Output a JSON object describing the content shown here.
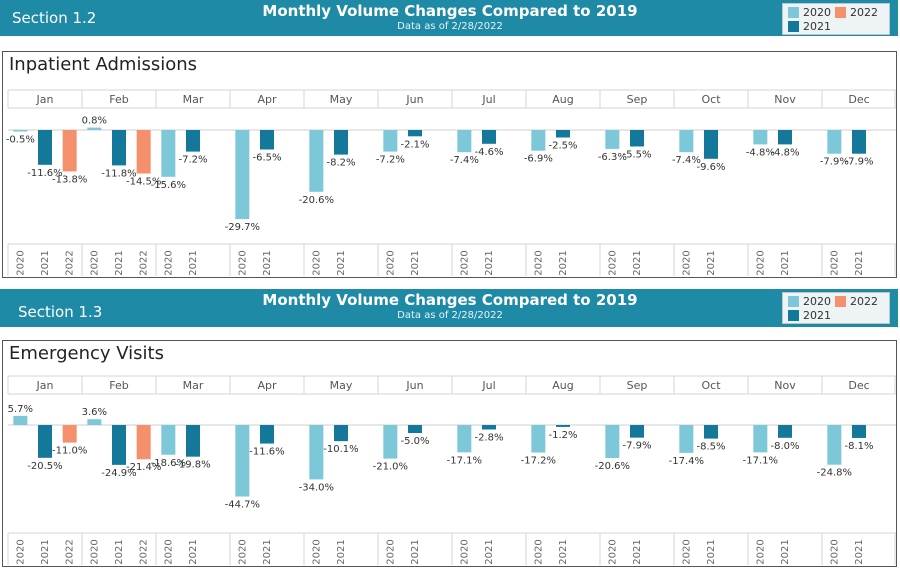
{
  "legend": {
    "entries": [
      {
        "label": "2020",
        "color": "#7cc7d8"
      },
      {
        "label": "2022",
        "color": "#f4906c"
      },
      {
        "label": "2021",
        "color": "#13789a"
      }
    ]
  },
  "sections": [
    {
      "section_label": "Section 1.2",
      "title": "Monthly Volume Changes Compared to 2019",
      "subtitle": "Data as of 2/28/2022",
      "chart_title": "Inpatient Admissions"
    },
    {
      "section_label": "Section 1.3",
      "title": "Monthly Volume Changes Compared to 2019",
      "subtitle": "Data as of 2/28/2022",
      "chart_title": "Emergency Visits"
    }
  ],
  "chart_data": [
    {
      "type": "bar",
      "title": "Inpatient Admissions",
      "value_suffix": "%",
      "months": [
        "Jan",
        "Feb",
        "Mar",
        "Apr",
        "May",
        "Jun",
        "Jul",
        "Aug",
        "Sep",
        "Oct",
        "Nov",
        "Dec"
      ],
      "series": [
        {
          "name": "2020",
          "color": "#7cc7d8",
          "values": [
            -0.5,
            0.8,
            -15.6,
            -29.7,
            -20.6,
            -7.2,
            -7.4,
            -6.9,
            -6.3,
            -7.4,
            -4.8,
            -7.9
          ]
        },
        {
          "name": "2021",
          "color": "#13789a",
          "values": [
            -11.6,
            -11.8,
            -7.2,
            -6.5,
            -8.2,
            -2.1,
            -4.6,
            -2.5,
            -5.5,
            -9.6,
            -4.8,
            -7.9
          ]
        },
        {
          "name": "2022",
          "color": "#f4906c",
          "values": [
            -13.8,
            -14.5,
            null,
            null,
            null,
            null,
            null,
            null,
            null,
            null,
            null,
            null
          ]
        }
      ]
    },
    {
      "type": "bar",
      "title": "Emergency Visits",
      "value_suffix": "%",
      "months": [
        "Jan",
        "Feb",
        "Mar",
        "Apr",
        "May",
        "Jun",
        "Jul",
        "Aug",
        "Sep",
        "Oct",
        "Nov",
        "Dec"
      ],
      "series": [
        {
          "name": "2020",
          "color": "#7cc7d8",
          "values": [
            5.7,
            3.6,
            -18.6,
            -44.7,
            -34.0,
            -21.0,
            -17.1,
            -17.2,
            -20.6,
            -17.4,
            -17.1,
            -24.8
          ]
        },
        {
          "name": "2021",
          "color": "#13789a",
          "values": [
            -20.5,
            -24.9,
            -19.8,
            -11.6,
            -10.1,
            -5.0,
            -2.8,
            -1.2,
            -7.9,
            -8.5,
            -8.0,
            -8.1
          ]
        },
        {
          "name": "2022",
          "color": "#f4906c",
          "values": [
            -11.0,
            -21.4,
            null,
            null,
            null,
            null,
            null,
            null,
            null,
            null,
            null,
            null
          ]
        }
      ]
    }
  ]
}
